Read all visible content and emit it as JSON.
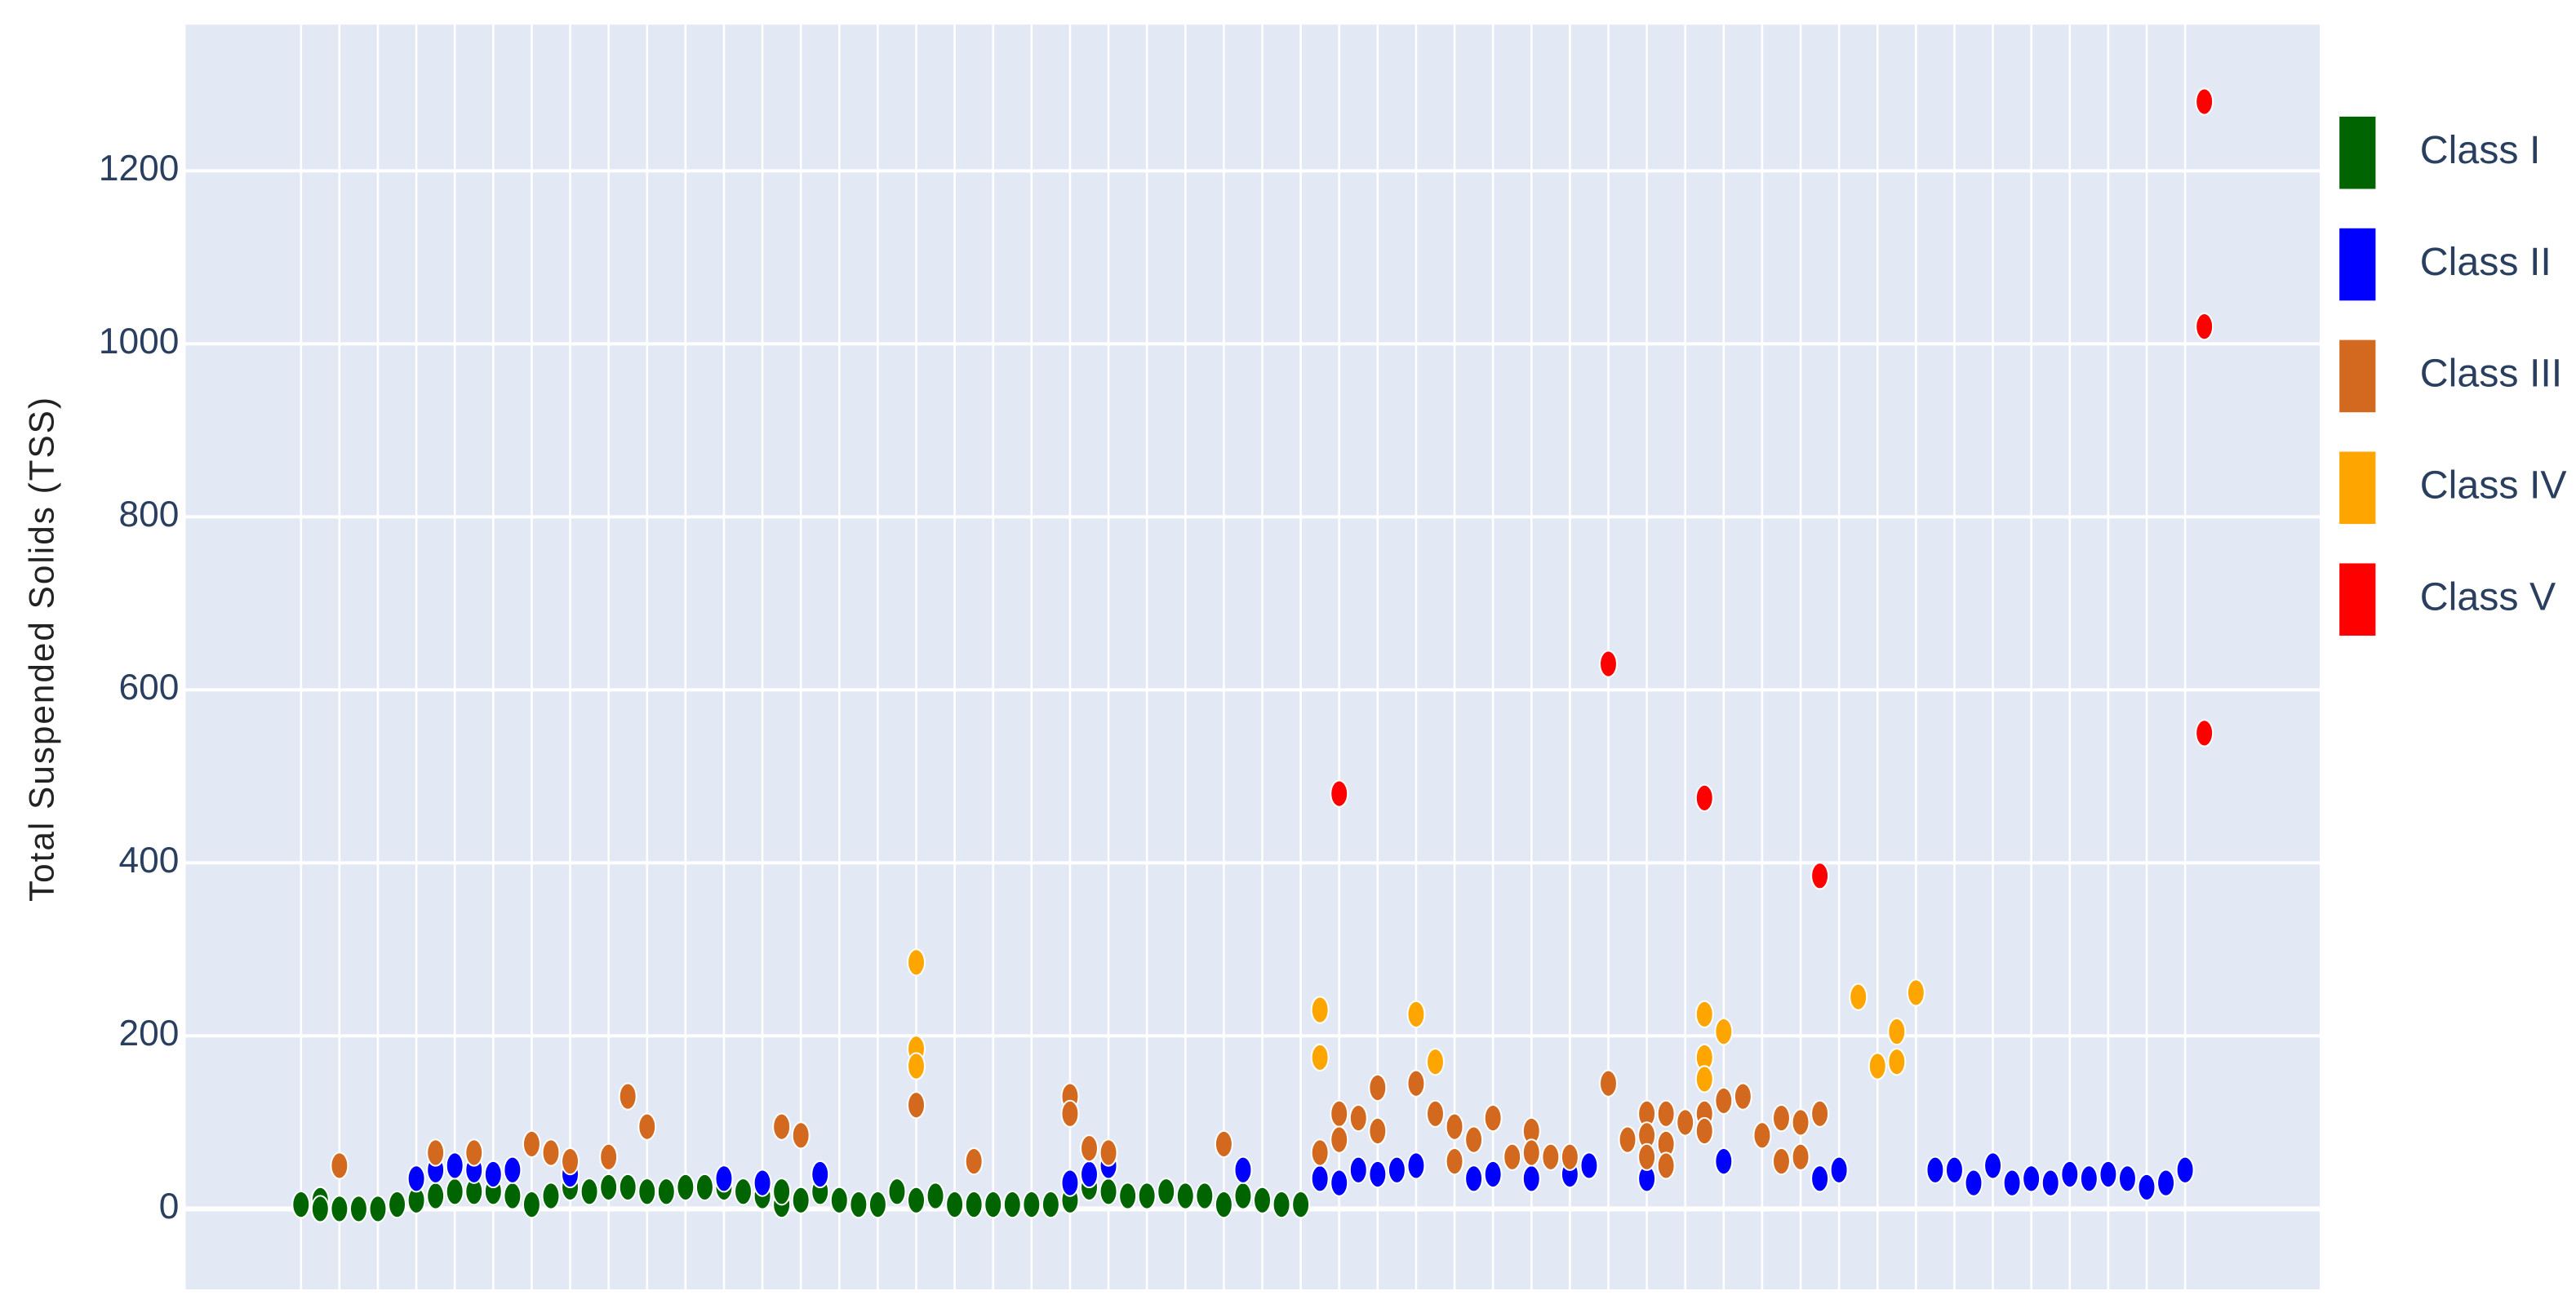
{
  "chart_data": {
    "type": "scatter",
    "y_label": "Total Suspended Solids (TSS)",
    "xlim": [
      -6,
      105
    ],
    "xticks": [
      0,
      2,
      4,
      6,
      8,
      10,
      12,
      14,
      16,
      18,
      20,
      22,
      24,
      26,
      28,
      30,
      32,
      34,
      36,
      38,
      40,
      42,
      44,
      46,
      48,
      50,
      52,
      54,
      56,
      58,
      60,
      62,
      64,
      66,
      68,
      70,
      72,
      74,
      76,
      78,
      80,
      82,
      84,
      86,
      88,
      90,
      92,
      94,
      96,
      98
    ],
    "ylim": [
      -93,
      1369
    ],
    "yticks": [
      0,
      200,
      400,
      600,
      800,
      1000,
      1200
    ],
    "grid": true,
    "legend": "right",
    "series": [
      {
        "name": "Class I",
        "color": "#006400",
        "x": [
          0,
          1,
          1,
          2,
          3,
          4,
          5,
          6,
          7,
          8,
          9,
          10,
          11,
          12,
          13,
          14,
          15,
          16,
          17,
          18,
          19,
          20,
          21,
          22,
          23,
          24,
          25,
          25,
          26,
          27,
          28,
          29,
          30,
          31,
          32,
          33,
          34,
          35,
          36,
          37,
          38,
          39,
          40,
          41,
          42,
          43,
          44,
          45,
          46,
          47,
          48,
          49,
          50,
          51,
          52
        ],
        "values": [
          5,
          10,
          0,
          0,
          0,
          0,
          5,
          10,
          15,
          20,
          20,
          20,
          15,
          5,
          15,
          25,
          20,
          25,
          25,
          20,
          20,
          25,
          25,
          25,
          20,
          15,
          5,
          20,
          10,
          20,
          10,
          5,
          5,
          20,
          10,
          15,
          5,
          5,
          5,
          5,
          5,
          5,
          10,
          25,
          20,
          15,
          15,
          20,
          15,
          15,
          5,
          15,
          10,
          5,
          5
        ]
      },
      {
        "name": "Class II",
        "color": "#0000ff",
        "x": [
          6,
          7,
          8,
          9,
          10,
          11,
          14,
          22,
          24,
          27,
          40,
          41,
          42,
          49,
          53,
          54,
          55,
          56,
          57,
          58,
          61,
          62,
          64,
          66,
          67,
          70,
          74,
          79,
          80,
          85,
          86,
          87,
          88,
          89,
          90,
          91,
          92,
          93,
          94,
          95,
          96,
          97,
          98
        ],
        "values": [
          35,
          45,
          50,
          45,
          40,
          45,
          40,
          35,
          30,
          40,
          30,
          40,
          50,
          45,
          35,
          30,
          45,
          40,
          45,
          50,
          35,
          40,
          35,
          40,
          50,
          35,
          55,
          35,
          45,
          45,
          45,
          30,
          50,
          30,
          35,
          30,
          40,
          35,
          40,
          35,
          25,
          30,
          45
        ]
      },
      {
        "name": "Class III",
        "color": "#d2691e",
        "x": [
          2,
          7,
          9,
          12,
          13,
          14,
          16,
          17,
          18,
          25,
          26,
          32,
          35,
          40,
          40,
          41,
          42,
          48,
          53,
          54,
          54,
          55,
          56,
          56,
          58,
          59,
          60,
          60,
          61,
          62,
          63,
          64,
          64,
          65,
          66,
          68,
          69,
          70,
          70,
          70,
          71,
          71,
          71,
          72,
          73,
          73,
          74,
          75,
          76,
          77,
          77,
          78,
          78,
          79
        ],
        "values": [
          50,
          65,
          65,
          75,
          65,
          55,
          60,
          130,
          95,
          95,
          85,
          120,
          55,
          130,
          110,
          70,
          65,
          75,
          65,
          110,
          80,
          105,
          140,
          90,
          145,
          110,
          95,
          55,
          80,
          105,
          60,
          90,
          65,
          60,
          60,
          145,
          80,
          110,
          85,
          60,
          110,
          75,
          50,
          100,
          110,
          90,
          125,
          130,
          85,
          105,
          55,
          100,
          60,
          110
        ]
      },
      {
        "name": "Class IV",
        "color": "#ffa500",
        "x": [
          32,
          32,
          32,
          53,
          53,
          58,
          59,
          73,
          73,
          73,
          74,
          81,
          82,
          83,
          83,
          84
        ],
        "values": [
          285,
          185,
          165,
          230,
          175,
          225,
          170,
          225,
          175,
          150,
          205,
          245,
          165,
          205,
          170,
          250
        ]
      },
      {
        "name": "Class V",
        "color": "#ff0000",
        "x": [
          54,
          68,
          73,
          79,
          99,
          99,
          99
        ],
        "values": [
          480,
          630,
          475,
          385,
          1280,
          1020,
          550
        ]
      }
    ]
  }
}
